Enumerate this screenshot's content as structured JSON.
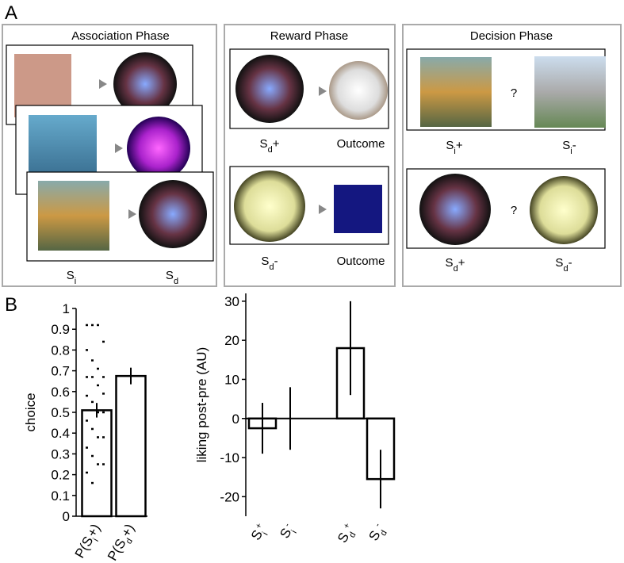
{
  "panel_labels": [
    "A",
    "B"
  ],
  "panel_a": {
    "phases": [
      {
        "title": "Association Phase",
        "labels": [
          {
            "parts": [
              {
                "text": "S"
              },
              {
                "text": "i",
                "shift": "sub"
              }
            ]
          },
          {
            "parts": [
              {
                "text": "S"
              },
              {
                "text": "d",
                "shift": "sub"
              }
            ]
          }
        ]
      },
      {
        "title": "Reward Phase",
        "labels": [
          {
            "parts": [
              {
                "text": "S"
              },
              {
                "text": "d",
                "shift": "sub"
              },
              {
                "text": "+"
              }
            ]
          },
          {
            "parts": [
              {
                "text": "Outcome"
              }
            ]
          },
          {
            "parts": [
              {
                "text": "S"
              },
              {
                "text": "d",
                "shift": "sub"
              },
              {
                "text": "-"
              }
            ]
          },
          {
            "parts": [
              {
                "text": "Outcome"
              }
            ]
          }
        ]
      },
      {
        "title": "Decision Phase",
        "question": "?",
        "labels": [
          {
            "parts": [
              {
                "text": "S"
              },
              {
                "text": "i",
                "shift": "sub"
              },
              {
                "text": "+"
              }
            ]
          },
          {
            "parts": [
              {
                "text": "S"
              },
              {
                "text": "i",
                "shift": "sub"
              },
              {
                "text": "-"
              }
            ]
          },
          {
            "parts": [
              {
                "text": "S"
              },
              {
                "text": "d",
                "shift": "sub"
              },
              {
                "text": "+"
              }
            ]
          },
          {
            "parts": [
              {
                "text": "S"
              },
              {
                "text": "d",
                "shift": "sub"
              },
              {
                "text": "-"
              }
            ]
          }
        ]
      }
    ]
  },
  "chart_data": [
    {
      "type": "bar",
      "y_label": "choice",
      "categories": [
        {
          "parts": [
            {
              "text": "P(S"
            },
            {
              "text": "i",
              "shift": "sub"
            },
            {
              "text": "+)"
            }
          ]
        },
        {
          "parts": [
            {
              "text": "P(S"
            },
            {
              "text": "d",
              "shift": "sub"
            },
            {
              "text": "+)"
            }
          ]
        }
      ],
      "values": [
        0.51,
        0.675
      ],
      "errors": [
        0.035,
        0.04
      ],
      "points": [
        0.92,
        0.92,
        0.92,
        0.84,
        0.8,
        0.75,
        0.71,
        0.67,
        0.67,
        0.67,
        0.63,
        0.59,
        0.58,
        0.55,
        0.5,
        0.5,
        0.46,
        0.42,
        0.38,
        0.38,
        0.33,
        0.29,
        0.25,
        0.25,
        0.21,
        0.16
      ],
      "ylim": [
        0,
        1
      ],
      "yticks": [
        0,
        0.1,
        0.2,
        0.3,
        0.4,
        0.5,
        0.6,
        0.7,
        0.8,
        0.9,
        1
      ],
      "color": "#ffffff"
    },
    {
      "type": "bar",
      "y_label": "liking post-pre (AU)",
      "categories": [
        {
          "parts": [
            {
              "text": "S"
            },
            {
              "text": "i",
              "shift": "sub"
            },
            {
              "text": "+",
              "shift": "super"
            }
          ]
        },
        {
          "parts": [
            {
              "text": "S"
            },
            {
              "text": "i",
              "shift": "sub"
            },
            {
              "text": "-",
              "shift": "super"
            }
          ]
        },
        {
          "parts": [
            {
              "text": "S"
            },
            {
              "text": "d",
              "shift": "sub"
            },
            {
              "text": "+",
              "shift": "super"
            }
          ]
        },
        {
          "parts": [
            {
              "text": "S"
            },
            {
              "text": "d",
              "shift": "sub"
            },
            {
              "text": "-",
              "shift": "super"
            }
          ]
        }
      ],
      "values": [
        -2.5,
        0,
        18,
        -15.5
      ],
      "errors": [
        6.5,
        8,
        12,
        7.5
      ],
      "ylim": [
        -25,
        32
      ],
      "yticks": [
        -20,
        -10,
        0,
        10,
        20,
        30
      ],
      "color": "#ffffff"
    }
  ]
}
